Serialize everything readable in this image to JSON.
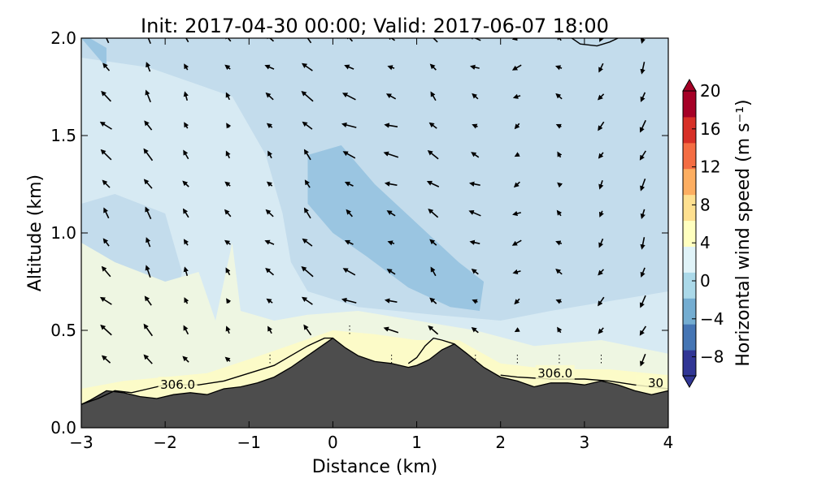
{
  "chart_data": {
    "type": "heatmap",
    "title": "Init: 2017-04-30 00:00; Valid: 2017-06-07 18:00",
    "xlabel": "Distance (km)",
    "ylabel": "Altitude (km)",
    "xlim": [
      -3,
      4
    ],
    "ylim": [
      0,
      2.0
    ],
    "x_ticks": [
      -3,
      -2,
      -1,
      0,
      1,
      2,
      3,
      4
    ],
    "x_tick_labels": [
      "−3",
      "−2",
      "−1",
      "0",
      "1",
      "2",
      "3",
      "4"
    ],
    "y_ticks": [
      0.0,
      0.5,
      1.0,
      1.5,
      2.0
    ],
    "y_tick_labels": [
      "0.0",
      "0.5",
      "1.0",
      "1.5",
      "2.0"
    ],
    "colorbar": {
      "label": "Horizontal wind speed (m s⁻¹)",
      "range": [
        -10,
        20
      ],
      "ticks": [
        20,
        16,
        12,
        8,
        4,
        0,
        -4,
        -8
      ],
      "tick_labels": [
        "20",
        "16",
        "12",
        "8",
        "4",
        "0",
        "−4",
        "−8"
      ],
      "colors": [
        "#313695",
        "#4575b4",
        "#74add1",
        "#abd9e9",
        "#e0f3f8",
        "#ffffbf",
        "#fee090",
        "#fdae61",
        "#f46d43",
        "#d73027",
        "#a50026"
      ]
    },
    "terrain": {
      "color": "#4d4d4d",
      "x": [
        -3.0,
        -2.9,
        -2.7,
        -2.5,
        -2.3,
        -2.1,
        -1.9,
        -1.7,
        -1.5,
        -1.3,
        -1.1,
        -0.9,
        -0.7,
        -0.5,
        -0.3,
        -0.1,
        0.0,
        0.15,
        0.3,
        0.5,
        0.7,
        0.9,
        1.0,
        1.15,
        1.3,
        1.45,
        1.6,
        1.8,
        2.0,
        2.2,
        2.4,
        2.6,
        2.8,
        3.0,
        3.2,
        3.4,
        3.6,
        3.8,
        4.0
      ],
      "z": [
        0.12,
        0.14,
        0.19,
        0.18,
        0.16,
        0.15,
        0.17,
        0.18,
        0.17,
        0.2,
        0.21,
        0.23,
        0.26,
        0.31,
        0.37,
        0.43,
        0.46,
        0.41,
        0.37,
        0.34,
        0.33,
        0.31,
        0.32,
        0.35,
        0.4,
        0.43,
        0.38,
        0.31,
        0.26,
        0.24,
        0.21,
        0.23,
        0.23,
        0.22,
        0.24,
        0.22,
        0.19,
        0.17,
        0.19
      ]
    },
    "theta_contours": [
      {
        "label": "306.0",
        "points": [
          [
            -3.0,
            0.12
          ],
          [
            -2.8,
            0.15
          ],
          [
            -2.6,
            0.19
          ],
          [
            -2.4,
            0.18
          ],
          [
            -2.2,
            0.2
          ],
          [
            -2.0,
            0.22
          ],
          [
            -1.6,
            0.22
          ],
          [
            -1.3,
            0.24
          ],
          [
            -1.0,
            0.28
          ],
          [
            -0.7,
            0.32
          ],
          [
            -0.5,
            0.37
          ],
          [
            -0.3,
            0.42
          ],
          [
            -0.1,
            0.46
          ],
          [
            0.0,
            0.46
          ]
        ]
      },
      {
        "label": "",
        "points": [
          [
            0.9,
            0.33
          ],
          [
            1.0,
            0.36
          ],
          [
            1.1,
            0.42
          ],
          [
            1.2,
            0.46
          ],
          [
            1.3,
            0.45
          ],
          [
            1.45,
            0.43
          ]
        ]
      },
      {
        "label": "306.0",
        "points": [
          [
            2.0,
            0.27
          ],
          [
            2.2,
            0.26
          ],
          [
            2.6,
            0.25
          ],
          [
            3.0,
            0.25
          ],
          [
            3.3,
            0.24
          ],
          [
            3.6,
            0.22
          ],
          [
            4.0,
            0.2
          ]
        ]
      },
      {
        "label": "",
        "points": [
          [
            2.85,
            2.0
          ],
          [
            2.95,
            1.97
          ],
          [
            3.15,
            1.96
          ],
          [
            3.3,
            1.98
          ],
          [
            3.4,
            2.0
          ]
        ]
      }
    ],
    "contour_labels": [
      {
        "text": "306.0",
        "x": -1.85,
        "y": 0.22
      },
      {
        "text": "306.0",
        "x": 2.65,
        "y": 0.28
      },
      {
        "text": "30",
        "x": 3.85,
        "y": 0.23
      }
    ],
    "wind_vectors": {
      "x_positions": [
        -2.7,
        -2.2,
        -1.75,
        -1.25,
        -0.75,
        -0.3,
        0.2,
        0.7,
        1.2,
        1.7,
        2.2,
        2.7,
        3.2,
        3.7
      ],
      "z_positions": [
        0.35,
        0.5,
        0.65,
        0.8,
        0.95,
        1.1,
        1.25,
        1.4,
        1.55,
        1.7,
        1.85,
        2.0
      ],
      "u": [
        -4,
        -3,
        -2,
        -2,
        -3,
        -4,
        -5,
        -5,
        -4,
        -4,
        -3,
        -2,
        -2,
        -2
      ],
      "w": [
        0.5,
        0.6,
        0.4,
        0.3,
        0.3,
        0.5,
        0.3,
        0.2,
        0.4,
        0.2,
        -0.2,
        0.2,
        -0.4,
        -0.6
      ]
    },
    "wind_regions": [
      {
        "level": "weak-easterly",
        "color": "#c3dcec"
      },
      {
        "level": "strong-easterly",
        "color": "#9ac5e1"
      },
      {
        "level": "near-zero",
        "color": "#eef6e2"
      },
      {
        "level": "weak-westerly",
        "color": "#fcfbc8"
      }
    ],
    "grid": false,
    "legend": "colorbar-right"
  }
}
